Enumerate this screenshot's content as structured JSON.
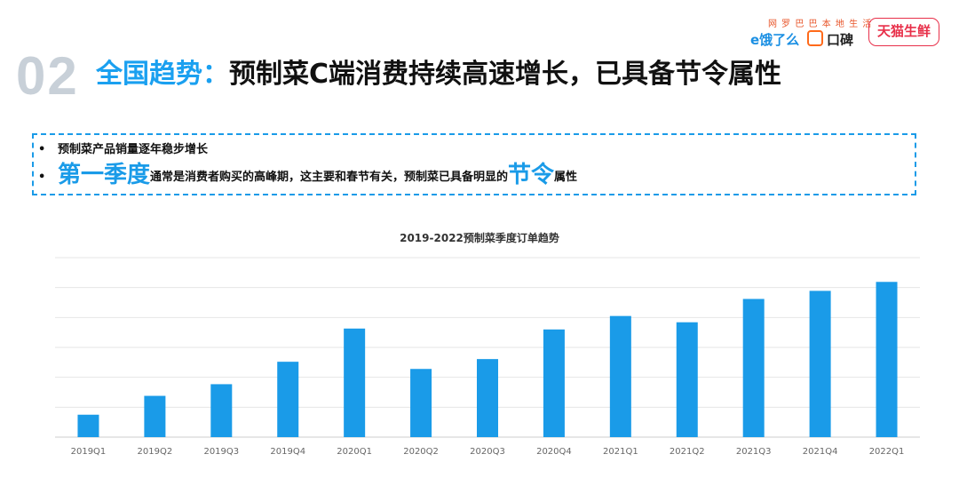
{
  "header": {
    "section_number": "02",
    "title_accent": "全国趋势：",
    "title_rest": "预制菜C端消费持续高速增长，已具备节令属性"
  },
  "logos": {
    "slogan": "网 罗 巴 巴 本 地 生 活",
    "eleme": "e饿了么",
    "koubei": "口碑",
    "tmall": "天猫生鲜"
  },
  "bullets": {
    "dot": "•",
    "line1": "预制菜产品销量逐年稳步增长",
    "line2_highlight1": "第一季度",
    "line2_mid": "通常是消费者购买的高峰期，这主要和春节有关，预制菜已具备明显的",
    "line2_highlight2": "节令",
    "line2_end": "属性"
  },
  "colors": {
    "accent": "#1a9be8",
    "bar": "#1a9be8",
    "grid": "#e6e6e6"
  },
  "chart_data": {
    "type": "bar",
    "title": "2019-2022预制菜季度订单趋势",
    "categories": [
      "2019Q1",
      "2019Q2",
      "2019Q3",
      "2019Q4",
      "2020Q1",
      "2020Q2",
      "2020Q3",
      "2020Q4",
      "2021Q1",
      "2021Q2",
      "2021Q3",
      "2021Q4",
      "2022Q1"
    ],
    "values": [
      1.25,
      2.3,
      2.95,
      4.2,
      6.05,
      3.8,
      4.35,
      6.0,
      6.75,
      6.4,
      7.7,
      8.15,
      8.65
    ],
    "ylim": [
      0,
      10
    ],
    "y_ticks_labeled": false,
    "grid": true,
    "xlabel": "",
    "ylabel": ""
  }
}
